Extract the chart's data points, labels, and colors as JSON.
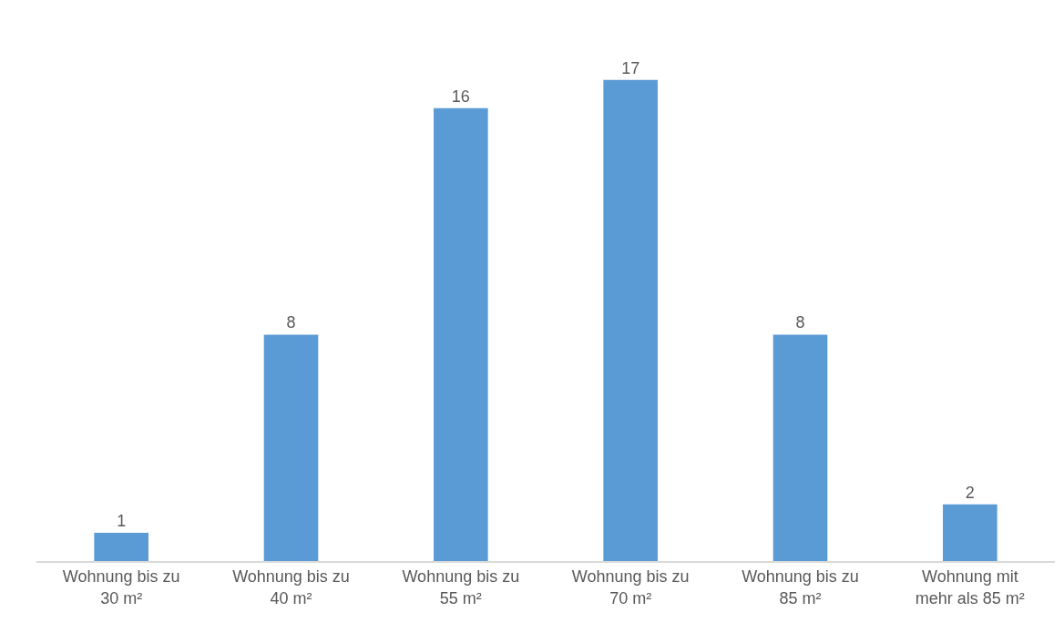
{
  "chart_data": {
    "type": "bar",
    "categories": [
      "Wohnung bis zu\n30 m²",
      "Wohnung bis zu\n40 m²",
      "Wohnung bis zu\n55 m²",
      "Wohnung bis zu\n70 m²",
      "Wohnung bis zu\n85 m²",
      "Wohnung mit\nmehr als 85 m²"
    ],
    "values": [
      1,
      8,
      16,
      17,
      8,
      2
    ],
    "color": "#5b9bd5",
    "data_labels": true,
    "tick_labels": "x"
  }
}
